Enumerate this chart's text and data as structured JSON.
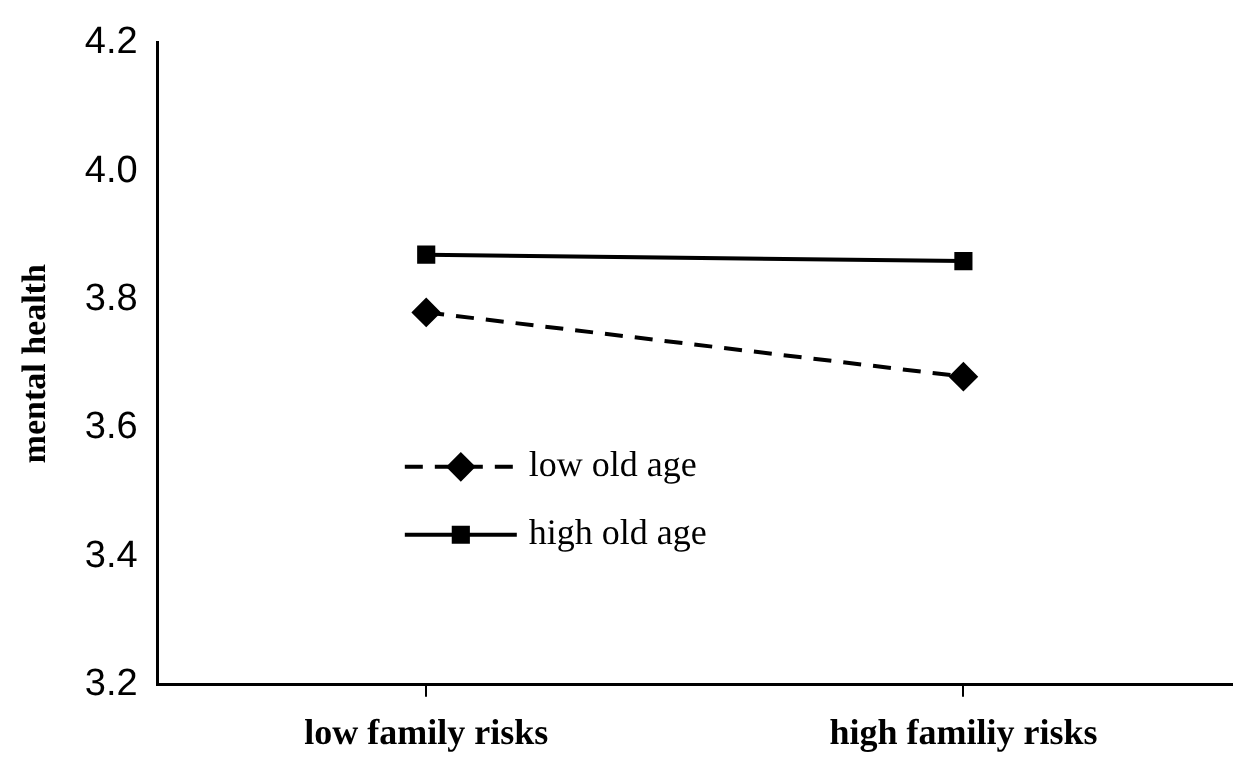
{
  "chart_data": {
    "type": "line",
    "ylabel": "mental health",
    "categories": [
      "low family risks",
      "high familiy risks"
    ],
    "series": [
      {
        "name": "low old age",
        "color": "#000000",
        "values": [
          3.78,
          3.68
        ],
        "marker": "diamond",
        "line_style": "dashed"
      },
      {
        "name": "high old age",
        "color": "#000000",
        "values": [
          3.87,
          3.86
        ],
        "marker": "square",
        "line_style": "solid"
      }
    ],
    "ylim": [
      3.2,
      4.2
    ],
    "yticks": [
      3.2,
      3.4,
      3.6,
      3.8,
      {
        "value": 4.0,
        "label": "4.0"
      },
      4.2
    ],
    "grid": false,
    "legend": "bottom"
  }
}
